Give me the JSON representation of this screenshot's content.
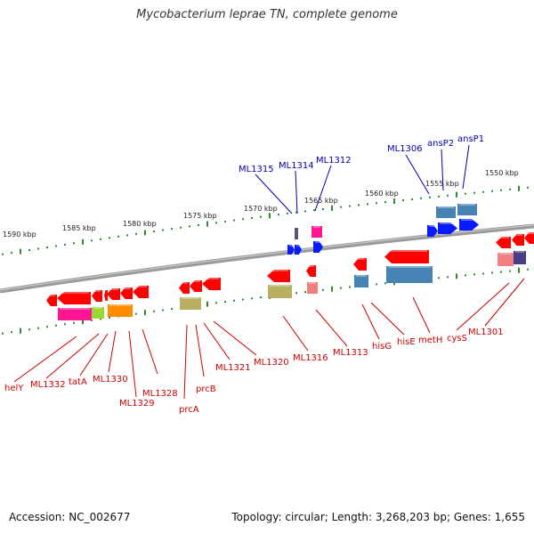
{
  "title": "Mycobacterium leprae TN, complete genome",
  "footer": {
    "accession": "Accession: NC_002677",
    "summary": "Topology: circular; Length: 3,268,203 bp; Genes: 1,655"
  },
  "colors": {
    "backbone": "#8c8c8c",
    "ruler": "#2e8b2e",
    "forward_label": "#0000aa",
    "reverse_label": "#cc0000"
  },
  "ruler_ticks": [
    {
      "label": "1590 kbp"
    },
    {
      "label": "1585 kbp"
    },
    {
      "label": "1580 kbp"
    },
    {
      "label": "1575 kbp"
    },
    {
      "label": "1570 kbp"
    },
    {
      "label": "1565 kbp"
    },
    {
      "label": "1560 kbp"
    },
    {
      "label": "1555 kbp"
    },
    {
      "label": "1550 kbp"
    }
  ],
  "forward_labels": [
    {
      "name": "ML1315"
    },
    {
      "name": "ML1314"
    },
    {
      "name": "ML1312"
    },
    {
      "name": "ML1306"
    },
    {
      "name": "ansP2"
    },
    {
      "name": "ansP1"
    }
  ],
  "reverse_labels": [
    {
      "name": "helY"
    },
    {
      "name": "ML1332"
    },
    {
      "name": "tatA"
    },
    {
      "name": "ML1330"
    },
    {
      "name": "ML1329"
    },
    {
      "name": "ML1328"
    },
    {
      "name": "prcA"
    },
    {
      "name": "prcB"
    },
    {
      "name": "ML1321"
    },
    {
      "name": "ML1320"
    },
    {
      "name": "ML1316"
    },
    {
      "name": "ML1313"
    },
    {
      "name": "hisG"
    },
    {
      "name": "hisE"
    },
    {
      "name": "metH"
    },
    {
      "name": "cysS"
    },
    {
      "name": "ML1301"
    }
  ]
}
